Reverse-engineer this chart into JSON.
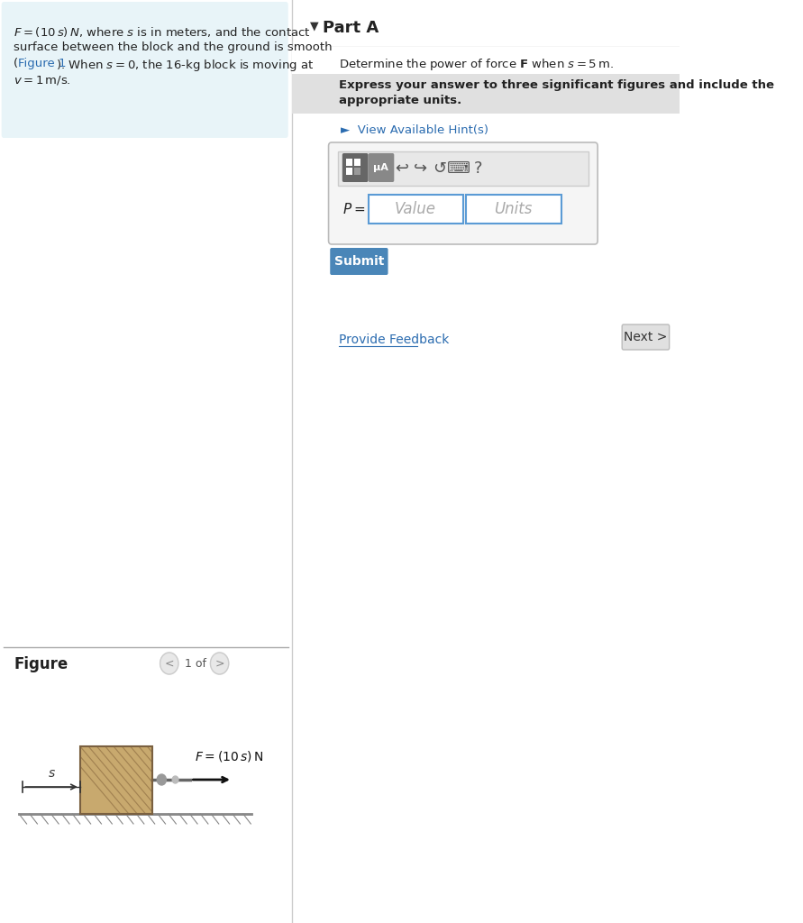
{
  "bg_color": "#ffffff",
  "left_panel_bg": "#e8f4f8",
  "divider_color": "#cccccc",
  "part_a_label": "Part A",
  "hint_color": "#2b6cb0",
  "input_box_border": "#5b9bd5",
  "input_box_bg": "#ffffff",
  "placeholder_color": "#aaaaaa",
  "submit_bg": "#4a86b8",
  "submit_text_color": "#ffffff",
  "submit_label": "Submit",
  "feedback_text": "Provide Feedback",
  "feedback_color": "#2b6cb0",
  "next_label": "Next >",
  "next_bg": "#e0e0e0",
  "next_text_color": "#333333",
  "figure_label": "Figure",
  "figure_nav": "1 of 1",
  "toolbar_bg": "#e8e8e8",
  "toolbar_border": "#cccccc"
}
